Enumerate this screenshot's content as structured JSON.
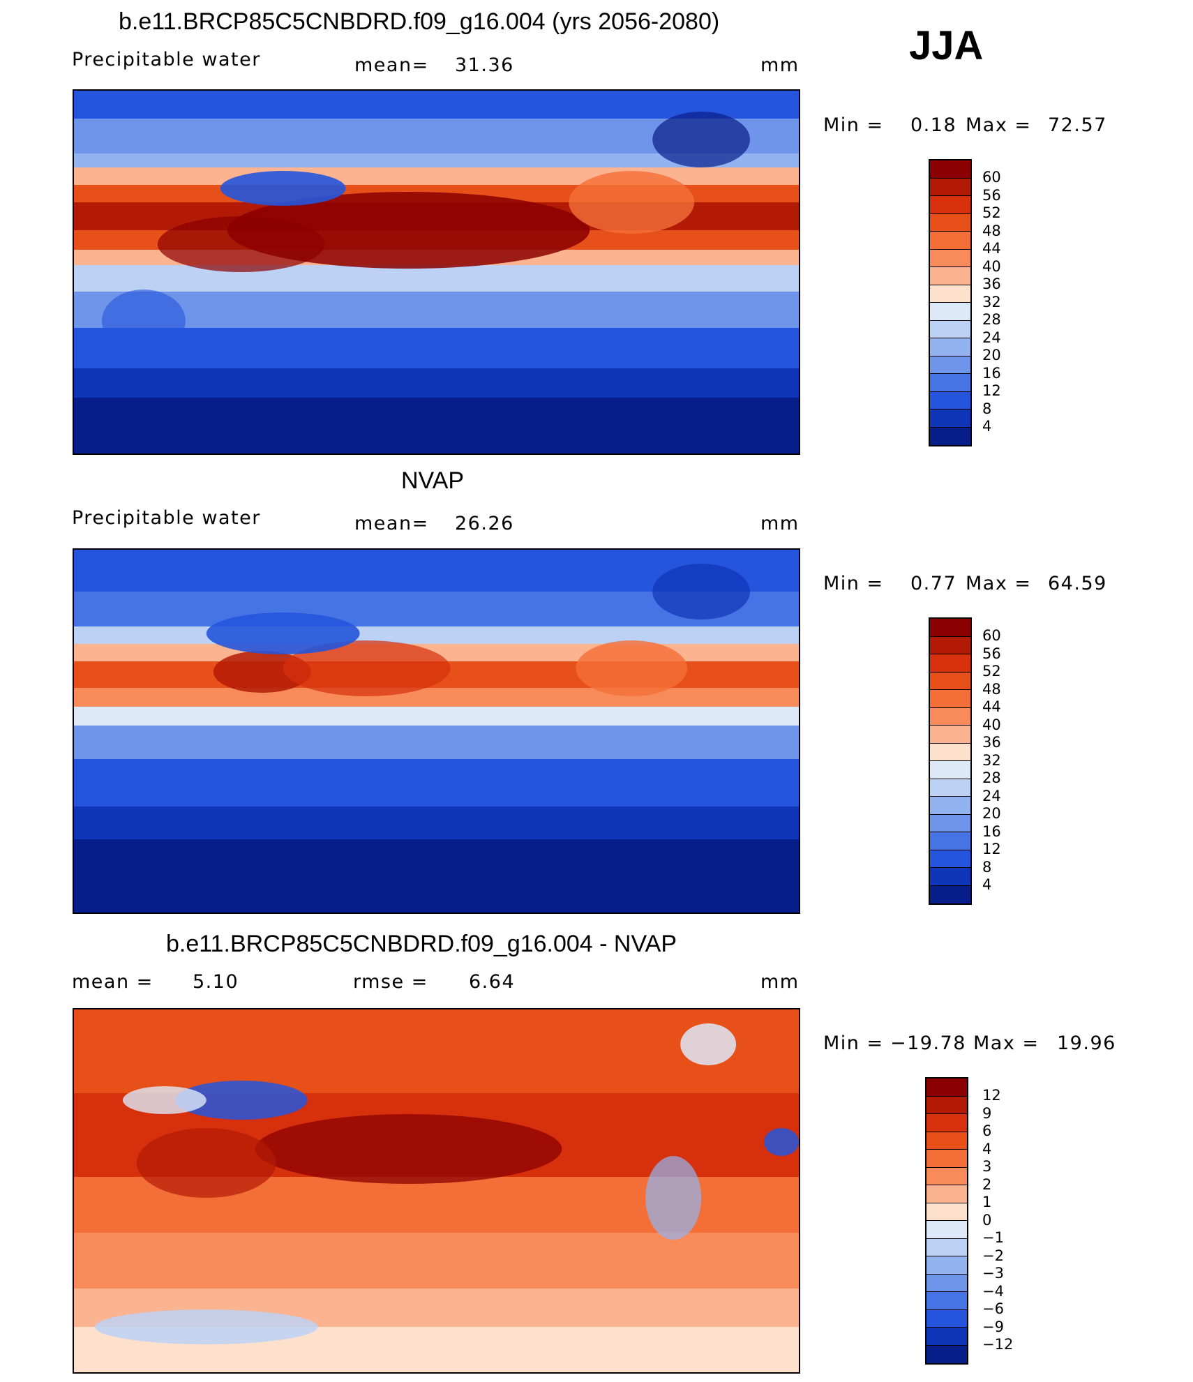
{
  "season": "JJA",
  "panels": [
    {
      "title": "b.e11.BRCP85C5CNBDRD.f09_g16.004 (yrs 2056-2080)",
      "left_label": "Precipitable  water",
      "stat_label": "mean=",
      "stat_value": "31.36",
      "units": "mm",
      "min_label": "Min  =",
      "min_value": "0.18",
      "max_label": "Max  =",
      "max_value": "72.57",
      "colorbar_labels": [
        "60",
        "56",
        "52",
        "48",
        "44",
        "40",
        "36",
        "32",
        "28",
        "24",
        "20",
        "16",
        "12",
        "8",
        "4"
      ],
      "colorbar_colors": [
        "#8b0000",
        "#b31a06",
        "#d6300d",
        "#e8501a",
        "#f46f38",
        "#f98b5a",
        "#fcb38f",
        "#fde1cd",
        "#dde8f8",
        "#bcd1f4",
        "#93b3f0",
        "#6f95ea",
        "#4674e4",
        "#2555dc",
        "#0f35b8",
        "#081e8a"
      ]
    },
    {
      "title": "NVAP",
      "left_label": "Precipitable  water",
      "stat_label": "mean=",
      "stat_value": "26.26",
      "units": "mm",
      "min_label": "Min  =",
      "min_value": "0.77",
      "max_label": "Max  =",
      "max_value": "64.59",
      "colorbar_labels": [
        "60",
        "56",
        "52",
        "48",
        "44",
        "40",
        "36",
        "32",
        "28",
        "24",
        "20",
        "16",
        "12",
        "8",
        "4"
      ],
      "colorbar_colors": [
        "#8b0000",
        "#b31a06",
        "#d6300d",
        "#e8501a",
        "#f46f38",
        "#f98b5a",
        "#fcb38f",
        "#fde1cd",
        "#dde8f8",
        "#bcd1f4",
        "#93b3f0",
        "#6f95ea",
        "#4674e4",
        "#2555dc",
        "#0f35b8",
        "#081e8a"
      ]
    },
    {
      "title": "b.e11.BRCP85C5CNBDRD.f09_g16.004 - NVAP",
      "left_label": "mean  =",
      "left_value": "5.10",
      "stat_label": "rmse  =",
      "stat_value": "6.64",
      "units": "mm",
      "min_label": "Min  =",
      "min_value": "−19.78",
      "max_label": "Max  =",
      "max_value": "19.96",
      "colorbar_labels": [
        "12",
        "9",
        "6",
        "4",
        "3",
        "2",
        "1",
        "0",
        "−1",
        "−2",
        "−3",
        "−4",
        "−6",
        "−9",
        "−12"
      ],
      "colorbar_colors": [
        "#8b0000",
        "#b31a06",
        "#d6300d",
        "#e8501a",
        "#f46f38",
        "#f98b5a",
        "#fcb38f",
        "#fde1cd",
        "#dde8f8",
        "#bcd1f4",
        "#93b3f0",
        "#6f95ea",
        "#4674e4",
        "#2555dc",
        "#0f35b8",
        "#081e8a"
      ]
    }
  ]
}
